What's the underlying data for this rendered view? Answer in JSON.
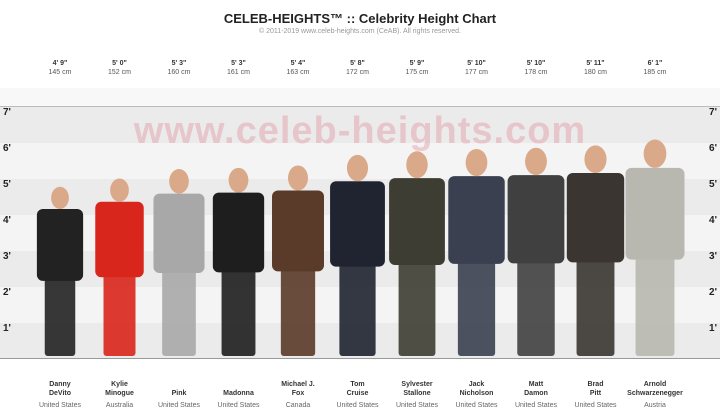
{
  "header": {
    "title": "CELEB-HEIGHTS™ :: Celebrity Height Chart",
    "copyright": "© 2011-2019 www.celeb-heights.com (CeAB). All rights reserved."
  },
  "watermark": "www.celeb-heights.com",
  "chart_data": {
    "type": "bar",
    "title": "CELEB-HEIGHTS™ :: Celebrity Height Chart",
    "ylabel": "",
    "yticks": [
      "1'",
      "2'",
      "3'",
      "4'",
      "5'",
      "6'",
      "7'"
    ],
    "ylim_ft": [
      0,
      7.4
    ],
    "people": [
      {
        "name1": "Danny",
        "name2": "DeVito",
        "country": "United States",
        "ft": "4' 9\"",
        "cm_label": "145 cm",
        "cm": 145,
        "color": "#222222"
      },
      {
        "name1": "Kylie",
        "name2": "Minogue",
        "country": "Australia",
        "ft": "5' 0\"",
        "cm_label": "152 cm",
        "cm": 152,
        "color": "#d9261c"
      },
      {
        "name1": "",
        "name2": "Pink",
        "country": "United States",
        "ft": "5' 3\"",
        "cm_label": "160 cm",
        "cm": 160,
        "color": "#a8a8a8"
      },
      {
        "name1": "",
        "name2": "Madonna",
        "country": "United States",
        "ft": "5' 3\"",
        "cm_label": "161 cm",
        "cm": 161,
        "color": "#1e1e1e"
      },
      {
        "name1": "Michael J.",
        "name2": "Fox",
        "country": "Canada",
        "ft": "5' 4\"",
        "cm_label": "163 cm",
        "cm": 163,
        "color": "#5a3a28"
      },
      {
        "name1": "Tom",
        "name2": "Cruise",
        "country": "United States",
        "ft": "5' 8\"",
        "cm_label": "172 cm",
        "cm": 172,
        "color": "#1f2430"
      },
      {
        "name1": "Sylvester",
        "name2": "Stallone",
        "country": "United States",
        "ft": "5' 9\"",
        "cm_label": "175 cm",
        "cm": 175,
        "color": "#3d3d33"
      },
      {
        "name1": "Jack",
        "name2": "Nicholson",
        "country": "United States",
        "ft": "5' 10\"",
        "cm_label": "177 cm",
        "cm": 177,
        "color": "#3a4050"
      },
      {
        "name1": "Matt",
        "name2": "Damon",
        "country": "United States",
        "ft": "5' 10\"",
        "cm_label": "178 cm",
        "cm": 178,
        "color": "#404040"
      },
      {
        "name1": "Brad",
        "name2": "Pitt",
        "country": "United States",
        "ft": "5' 11\"",
        "cm_label": "180 cm",
        "cm": 180,
        "color": "#3a3530"
      },
      {
        "name1": "Arnold",
        "name2": "Schwarzenegger",
        "country": "Austria",
        "ft": "6' 1\"",
        "cm_label": "185 cm",
        "cm": 185,
        "color": "#b8b8b0"
      }
    ]
  }
}
